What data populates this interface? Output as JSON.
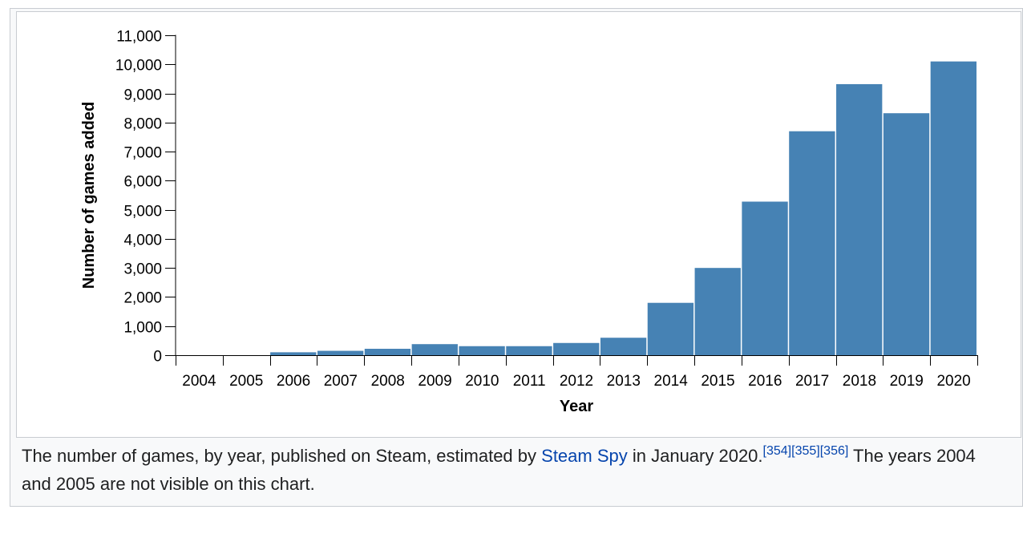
{
  "chart_data": {
    "type": "bar",
    "categories": [
      "2004",
      "2005",
      "2006",
      "2007",
      "2008",
      "2009",
      "2010",
      "2011",
      "2012",
      "2013",
      "2014",
      "2015",
      "2016",
      "2017",
      "2018",
      "2019",
      "2020"
    ],
    "values": [
      0,
      0,
      100,
      150,
      220,
      380,
      310,
      310,
      420,
      600,
      1800,
      3000,
      5280,
      7700,
      9320,
      8320,
      10100
    ],
    "title": "",
    "xlabel": "Year",
    "ylabel": "Number of games added",
    "ylim": [
      0,
      11000
    ],
    "yticks": [
      0,
      1000,
      2000,
      3000,
      4000,
      5000,
      6000,
      7000,
      8000,
      9000,
      10000,
      11000
    ],
    "ytick_labels": [
      "0",
      "1,000",
      "2,000",
      "3,000",
      "4,000",
      "5,000",
      "6,000",
      "7,000",
      "8,000",
      "9,000",
      "10,000",
      "11,000"
    ],
    "bar_color": "#4682b4",
    "grid": false
  },
  "caption": {
    "text_before": "The number of games, by year, published on Steam, estimated by ",
    "link_text": "Steam Spy",
    "text_middle": " in January 2020.",
    "refs": [
      "[354]",
      "[355]",
      "[356]"
    ],
    "text_after": " The years 2004 and 2005 are not visible on this chart."
  }
}
